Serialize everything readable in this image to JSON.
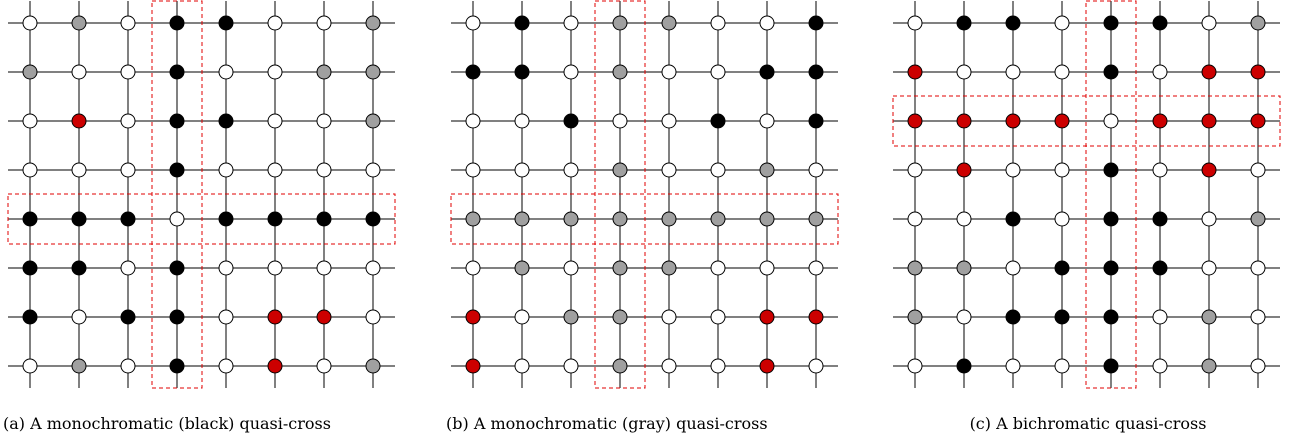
{
  "colors": {
    "W": "#ffffff",
    "B": "#000000",
    "G": "#a0a0a0",
    "R": "#cc0000",
    "highlight": "#e00000",
    "grid": "#000000"
  },
  "panels": [
    {
      "caption": "(a) A monochromatic (black) quasi-cross",
      "grid": [
        [
          "W",
          "G",
          "W",
          "B",
          "B",
          "W",
          "W",
          "G"
        ],
        [
          "G",
          "W",
          "W",
          "B",
          "W",
          "W",
          "G",
          "G"
        ],
        [
          "W",
          "R",
          "W",
          "B",
          "B",
          "W",
          "W",
          "G"
        ],
        [
          "W",
          "W",
          "W",
          "B",
          "W",
          "W",
          "W",
          "W"
        ],
        [
          "B",
          "B",
          "B",
          "W",
          "B",
          "B",
          "B",
          "B"
        ],
        [
          "B",
          "B",
          "W",
          "B",
          "W",
          "W",
          "W",
          "W"
        ],
        [
          "B",
          "W",
          "B",
          "B",
          "W",
          "R",
          "R",
          "W"
        ],
        [
          "W",
          "G",
          "W",
          "B",
          "W",
          "R",
          "W",
          "G"
        ]
      ],
      "highlight": {
        "row": 4,
        "col": 3
      }
    },
    {
      "caption": "(b) A monochromatic (gray) quasi-cross",
      "grid": [
        [
          "W",
          "B",
          "W",
          "G",
          "G",
          "W",
          "W",
          "B"
        ],
        [
          "B",
          "B",
          "W",
          "G",
          "W",
          "W",
          "B",
          "B"
        ],
        [
          "W",
          "W",
          "B",
          "W",
          "W",
          "B",
          "W",
          "B"
        ],
        [
          "W",
          "W",
          "W",
          "G",
          "W",
          "W",
          "G",
          "W"
        ],
        [
          "G",
          "G",
          "G",
          "G",
          "G",
          "G",
          "G",
          "G"
        ],
        [
          "W",
          "G",
          "W",
          "G",
          "G",
          "W",
          "W",
          "W"
        ],
        [
          "R",
          "W",
          "G",
          "G",
          "W",
          "W",
          "R",
          "R"
        ],
        [
          "R",
          "W",
          "W",
          "G",
          "W",
          "W",
          "R",
          "W"
        ]
      ],
      "highlight": {
        "row": 4,
        "col": 3
      }
    },
    {
      "caption": "(c) A bichromatic quasi-cross",
      "grid": [
        [
          "W",
          "B",
          "B",
          "W",
          "B",
          "B",
          "W",
          "G"
        ],
        [
          "R",
          "W",
          "W",
          "W",
          "B",
          "W",
          "R",
          "R"
        ],
        [
          "R",
          "R",
          "R",
          "R",
          "W",
          "R",
          "R",
          "R"
        ],
        [
          "W",
          "R",
          "W",
          "W",
          "B",
          "W",
          "R",
          "W"
        ],
        [
          "W",
          "W",
          "B",
          "W",
          "B",
          "B",
          "W",
          "G"
        ],
        [
          "G",
          "G",
          "W",
          "B",
          "B",
          "B",
          "W",
          "W"
        ],
        [
          "G",
          "W",
          "B",
          "B",
          "B",
          "W",
          "G",
          "W"
        ],
        [
          "W",
          "B",
          "W",
          "W",
          "B",
          "W",
          "G",
          "W"
        ]
      ],
      "highlight": {
        "row": 2,
        "col": 4
      }
    }
  ]
}
